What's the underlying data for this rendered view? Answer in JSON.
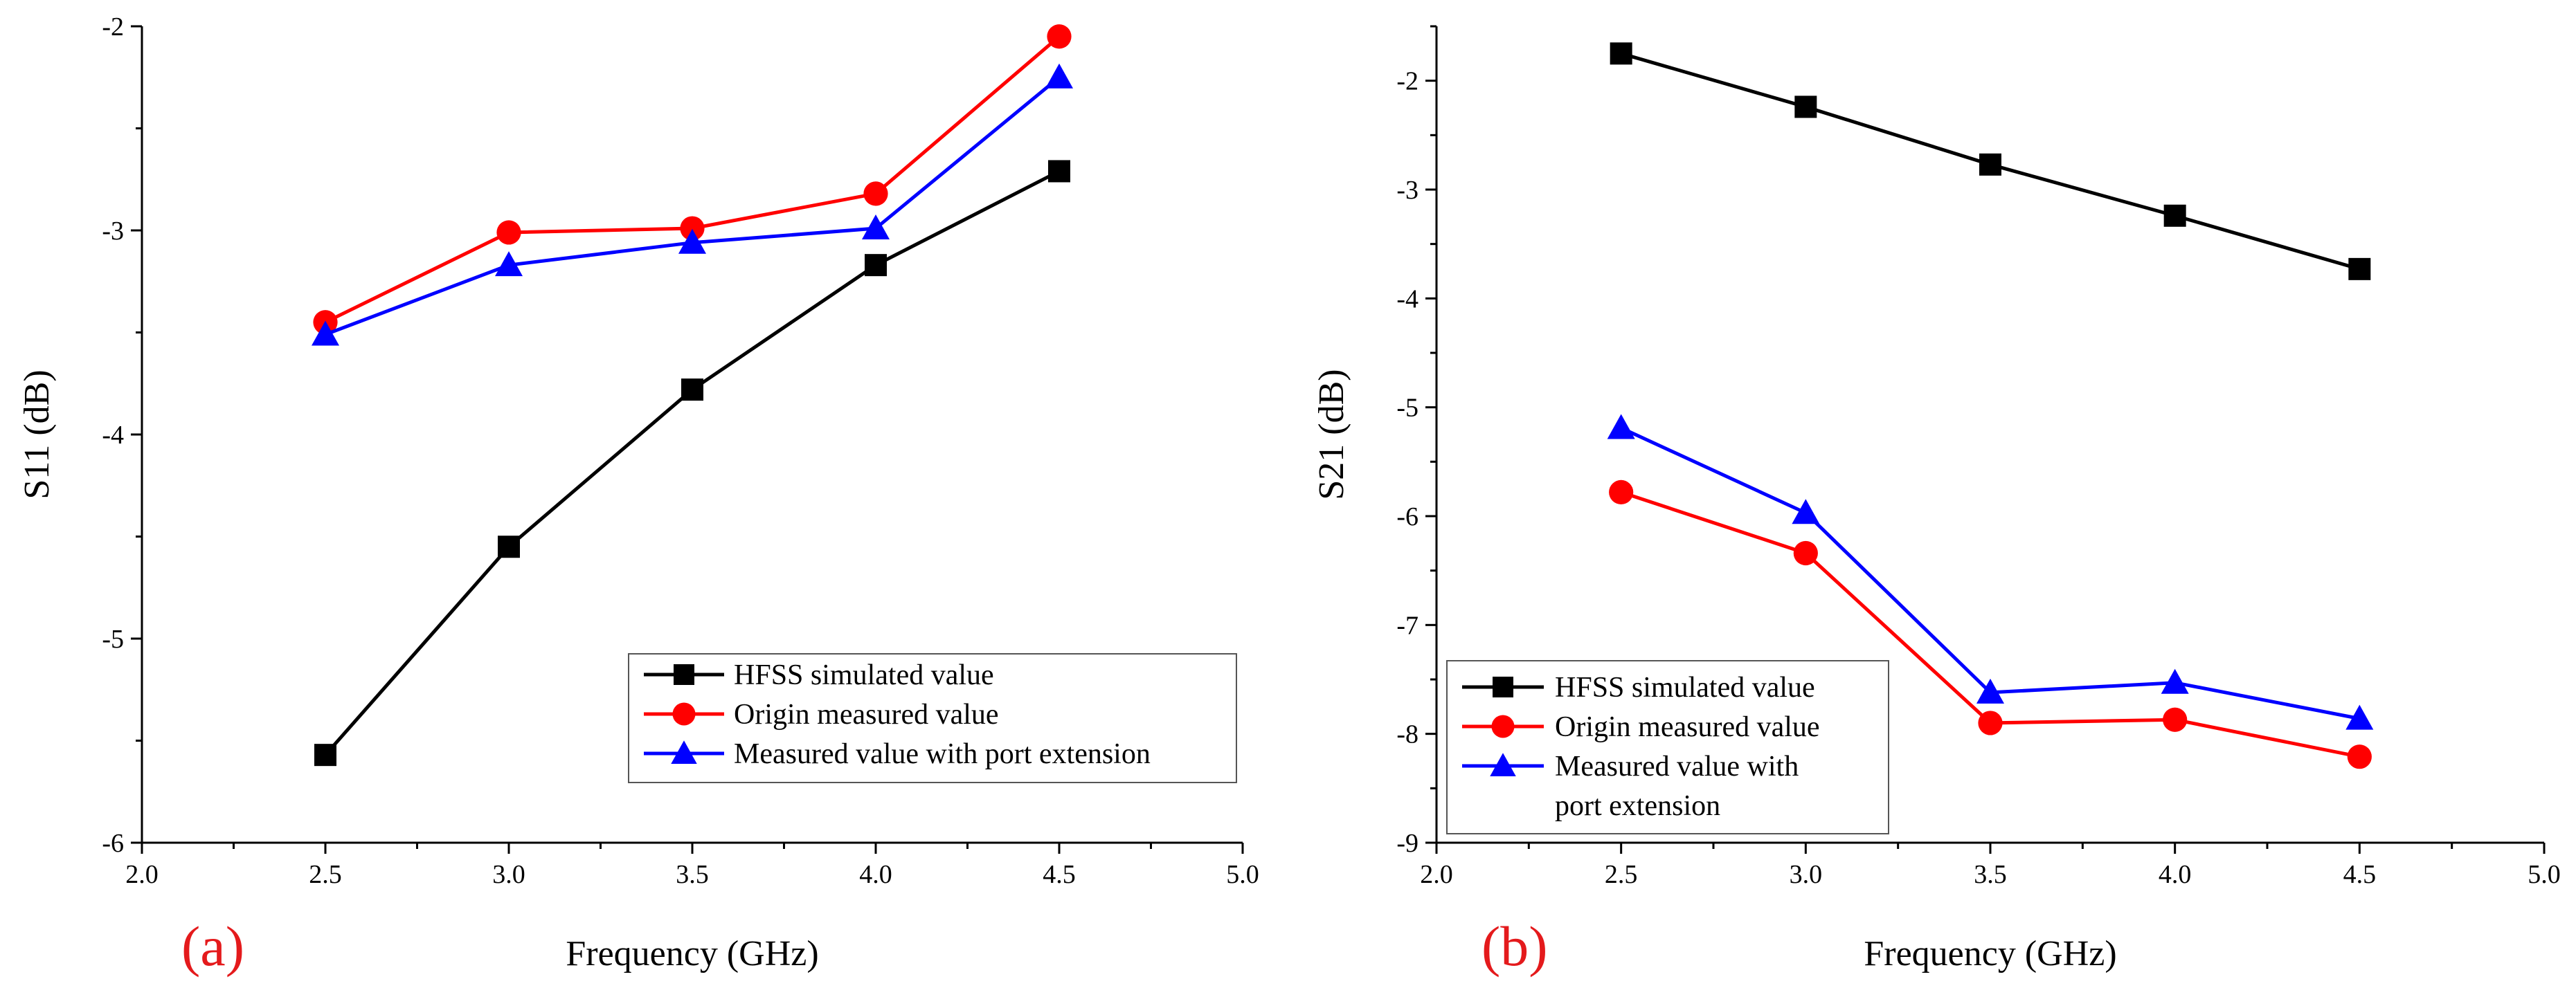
{
  "chart_data": [
    {
      "type": "line",
      "panel_label": "(a)",
      "title": "",
      "xlabel": "Frequency (GHz)",
      "ylabel": "S11 (dB)",
      "xlim": [
        2.0,
        5.0
      ],
      "ylim": [
        -6,
        -2
      ],
      "x_ticks": [
        2.0,
        2.5,
        3.0,
        3.5,
        4.0,
        4.5,
        5.0
      ],
      "x_tick_labels": [
        "2.0",
        "2.5",
        "3.0",
        "3.5",
        "4.0",
        "4.5",
        "5.0"
      ],
      "y_ticks": [
        -6,
        -5,
        -4,
        -3,
        -2
      ],
      "y_tick_labels": [
        "-6",
        "-5",
        "-4",
        "-3",
        "-2"
      ],
      "x": [
        2.5,
        3.0,
        3.5,
        4.0,
        4.5
      ],
      "legend_position": "bottom-right",
      "series": [
        {
          "name": "HFSS simulated value",
          "lines": [
            "HFSS simulated value"
          ],
          "color": "#000000",
          "marker": "square",
          "values": [
            -5.57,
            -4.55,
            -3.78,
            -3.17,
            -2.71
          ]
        },
        {
          "name": "Origin measured value",
          "lines": [
            "Origin measured value"
          ],
          "color": "#ff0000",
          "marker": "circle",
          "values": [
            -3.45,
            -3.01,
            -2.99,
            -2.82,
            -2.05
          ]
        },
        {
          "name": "Measured value with port extension",
          "lines": [
            "Measured value with port extension"
          ],
          "color": "#0000ff",
          "marker": "triangle",
          "values": [
            -3.51,
            -3.17,
            -3.06,
            -2.99,
            -2.25
          ]
        }
      ]
    },
    {
      "type": "line",
      "panel_label": "(b)",
      "title": "",
      "xlabel": "Frequency (GHz)",
      "ylabel": "S21 (dB)",
      "xlim": [
        2.0,
        5.0
      ],
      "ylim": [
        -9,
        -1.5
      ],
      "x_ticks": [
        2.0,
        2.5,
        3.0,
        3.5,
        4.0,
        4.5,
        5.0
      ],
      "x_tick_labels": [
        "2.0",
        "2.5",
        "3.0",
        "3.5",
        "4.0",
        "4.5",
        "5.0"
      ],
      "y_ticks": [
        -9,
        -8,
        -7,
        -6,
        -5,
        -4,
        -3,
        -2
      ],
      "y_tick_labels": [
        "-9",
        "-8",
        "-7",
        "-6",
        "-5",
        "-4",
        "-3",
        "-2"
      ],
      "x": [
        2.5,
        3.0,
        3.5,
        4.0,
        4.5
      ],
      "legend_position": "bottom-left",
      "series": [
        {
          "name": "HFSS simulated value",
          "lines": [
            "HFSS simulated value"
          ],
          "color": "#000000",
          "marker": "square",
          "values": [
            -1.75,
            -2.24,
            -2.77,
            -3.24,
            -3.73
          ]
        },
        {
          "name": "Origin measured value",
          "lines": [
            "Origin measured value"
          ],
          "color": "#ff0000",
          "marker": "circle",
          "values": [
            -5.78,
            -6.34,
            -7.9,
            -7.87,
            -8.21
          ]
        },
        {
          "name": "Measured value with port extension",
          "lines": [
            "Measured value with",
            "port extension"
          ],
          "color": "#0000ff",
          "marker": "triangle",
          "values": [
            -5.19,
            -5.97,
            -7.62,
            -7.53,
            -7.86
          ]
        }
      ]
    }
  ]
}
